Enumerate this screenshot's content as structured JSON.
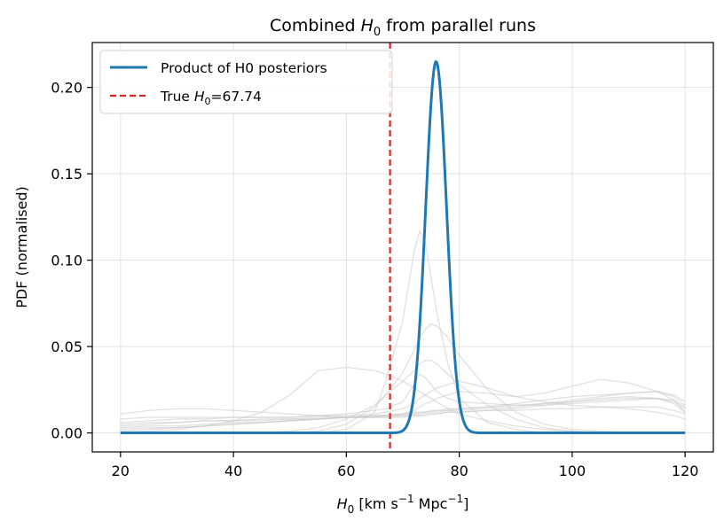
{
  "chart_data": {
    "type": "line",
    "title_prefix": "Combined ",
    "title_symbol": "H",
    "title_subscript": "0",
    "title_suffix": " from parallel runs",
    "xlabel_symbol": "H",
    "xlabel_subscript": "0",
    "xlabel_units_a": " [km s",
    "xlabel_exp_a": "−1",
    "xlabel_units_b": " Mpc",
    "xlabel_exp_b": "−1",
    "xlabel_units_c": "]",
    "ylabel": "PDF (normalised)",
    "xlim": [
      15,
      125
    ],
    "ylim": [
      -0.011,
      0.226
    ],
    "xticks": [
      20,
      40,
      60,
      80,
      100,
      120
    ],
    "xtick_labels": [
      "20",
      "40",
      "60",
      "80",
      "100",
      "120"
    ],
    "yticks": [
      0.0,
      0.05,
      0.1,
      0.15,
      0.2
    ],
    "ytick_labels": [
      "0.00",
      "0.05",
      "0.10",
      "0.15",
      "0.20"
    ],
    "grid": true,
    "legend_position": "top-left",
    "series": [
      {
        "name": "Product of H0 posteriors",
        "kind": "gaussian",
        "mean": 75.9,
        "sigma": 1.85,
        "peak": 0.215,
        "x_range": [
          20,
          120
        ],
        "color": "#1f77b4"
      }
    ],
    "reference_line": {
      "label_prefix": "True ",
      "label_symbol": "H",
      "label_subscript": "0",
      "label_value": "=67.74",
      "x": 67.74,
      "color": "#d62728",
      "style": "dashed"
    },
    "individual_runs": {
      "color": "#c8c8c8",
      "x": [
        20,
        25,
        30,
        35,
        40,
        45,
        50,
        55,
        60,
        65,
        67,
        70,
        72,
        73,
        74,
        75,
        76,
        78,
        80,
        85,
        90,
        95,
        100,
        105,
        110,
        115,
        118,
        120
      ],
      "runs": [
        [
          0.0,
          0.0,
          0.0,
          0.0,
          0.0,
          0.0,
          0.0,
          0.0,
          0.002,
          0.012,
          0.03,
          0.065,
          0.105,
          0.117,
          0.11,
          0.09,
          0.07,
          0.04,
          0.02,
          0.006,
          0.002,
          0.0,
          0.0,
          0.0,
          0.0,
          0.0,
          0.0,
          0.0
        ],
        [
          0.0,
          0.0,
          0.0,
          0.0,
          0.0,
          0.0,
          0.0,
          0.001,
          0.005,
          0.015,
          0.022,
          0.035,
          0.048,
          0.055,
          0.06,
          0.063,
          0.062,
          0.055,
          0.045,
          0.025,
          0.012,
          0.005,
          0.002,
          0.001,
          0.0,
          0.0,
          0.0,
          0.0
        ],
        [
          0.0,
          0.001,
          0.002,
          0.004,
          0.007,
          0.012,
          0.022,
          0.036,
          0.038,
          0.036,
          0.034,
          0.03,
          0.026,
          0.024,
          0.022,
          0.02,
          0.018,
          0.014,
          0.011,
          0.007,
          0.004,
          0.002,
          0.001,
          0.0,
          0.0,
          0.0,
          0.0,
          0.0
        ],
        [
          0.006,
          0.007,
          0.008,
          0.008,
          0.009,
          0.009,
          0.009,
          0.01,
          0.011,
          0.013,
          0.014,
          0.018,
          0.028,
          0.034,
          0.032,
          0.028,
          0.024,
          0.02,
          0.018,
          0.017,
          0.016,
          0.016,
          0.017,
          0.018,
          0.019,
          0.02,
          0.019,
          0.015
        ],
        [
          0.002,
          0.003,
          0.003,
          0.004,
          0.005,
          0.006,
          0.007,
          0.008,
          0.009,
          0.01,
          0.01,
          0.011,
          0.012,
          0.012,
          0.012,
          0.013,
          0.013,
          0.014,
          0.014,
          0.015,
          0.016,
          0.017,
          0.019,
          0.021,
          0.023,
          0.024,
          0.022,
          0.018
        ],
        [
          0.011,
          0.013,
          0.014,
          0.014,
          0.013,
          0.012,
          0.011,
          0.01,
          0.009,
          0.009,
          0.009,
          0.009,
          0.01,
          0.01,
          0.01,
          0.011,
          0.011,
          0.012,
          0.012,
          0.013,
          0.013,
          0.014,
          0.014,
          0.015,
          0.015,
          0.015,
          0.013,
          0.011
        ],
        [
          0.004,
          0.005,
          0.006,
          0.007,
          0.007,
          0.008,
          0.008,
          0.009,
          0.009,
          0.01,
          0.01,
          0.011,
          0.013,
          0.015,
          0.017,
          0.018,
          0.02,
          0.022,
          0.024,
          0.023,
          0.021,
          0.023,
          0.027,
          0.031,
          0.029,
          0.024,
          0.019,
          0.012
        ],
        [
          0.001,
          0.002,
          0.003,
          0.004,
          0.005,
          0.006,
          0.007,
          0.008,
          0.009,
          0.01,
          0.01,
          0.011,
          0.011,
          0.012,
          0.012,
          0.012,
          0.013,
          0.013,
          0.014,
          0.015,
          0.017,
          0.019,
          0.021,
          0.022,
          0.023,
          0.024,
          0.021,
          0.016
        ],
        [
          0.008,
          0.009,
          0.009,
          0.009,
          0.009,
          0.009,
          0.009,
          0.01,
          0.01,
          0.011,
          0.012,
          0.014,
          0.017,
          0.02,
          0.022,
          0.024,
          0.026,
          0.028,
          0.03,
          0.026,
          0.021,
          0.018,
          0.016,
          0.015,
          0.014,
          0.012,
          0.01,
          0.008
        ],
        [
          0.003,
          0.004,
          0.004,
          0.005,
          0.006,
          0.006,
          0.007,
          0.008,
          0.009,
          0.009,
          0.01,
          0.01,
          0.011,
          0.011,
          0.012,
          0.012,
          0.012,
          0.013,
          0.013,
          0.014,
          0.015,
          0.017,
          0.018,
          0.02,
          0.021,
          0.02,
          0.018,
          0.014
        ],
        [
          0.0,
          0.0,
          0.0,
          0.0,
          0.0,
          0.0,
          0.001,
          0.003,
          0.008,
          0.016,
          0.022,
          0.03,
          0.036,
          0.04,
          0.042,
          0.042,
          0.04,
          0.034,
          0.028,
          0.016,
          0.008,
          0.003,
          0.001,
          0.0,
          0.0,
          0.0,
          0.0,
          0.0
        ],
        [
          0.005,
          0.006,
          0.006,
          0.007,
          0.007,
          0.007,
          0.008,
          0.008,
          0.009,
          0.009,
          0.009,
          0.01,
          0.01,
          0.01,
          0.011,
          0.011,
          0.011,
          0.012,
          0.012,
          0.013,
          0.014,
          0.016,
          0.018,
          0.019,
          0.02,
          0.02,
          0.017,
          0.012
        ]
      ]
    }
  }
}
